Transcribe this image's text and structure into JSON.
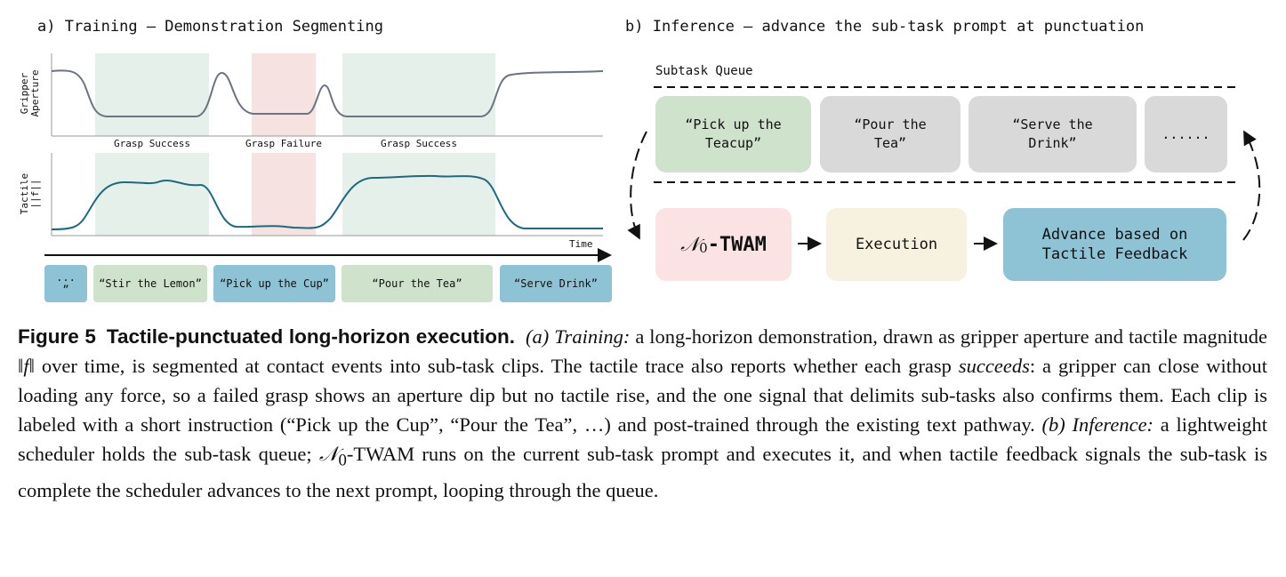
{
  "panel_a": {
    "title": "a) Training — Demonstration Segmenting",
    "aperture_label": [
      "Gripper",
      "Aperture"
    ],
    "tactile_label": [
      "Tactile",
      "||f||"
    ],
    "regions": [
      "Grasp Success",
      "Grasp Failure",
      "Grasp Success"
    ],
    "time_label": "Time",
    "segments": [
      [
        "...",
        "”"
      ],
      [
        "“Stir the Lemon”"
      ],
      [
        "“Pick up the Cup”"
      ],
      [
        "“Pour the Tea”"
      ],
      [
        "“Serve Drink”"
      ]
    ]
  },
  "panel_b": {
    "title": "b) Inference — advance the sub-task prompt at punctuation",
    "queue_label": "Subtask Queue",
    "queue": [
      [
        "“Pick up the",
        "Teacup”"
      ],
      [
        "“Pour the",
        "Tea”"
      ],
      [
        "“Serve the",
        "Drink”"
      ],
      [
        "......"
      ]
    ],
    "model": {
      "symbol": "𝒩",
      "subscript": "0",
      "name": "-TWAM"
    },
    "execution": "Execution",
    "advance": [
      "Advance based on",
      "Tactile Feedback"
    ]
  },
  "caption": {
    "label": "Figure 5",
    "title": "Tactile-punctuated long-horizon execution.",
    "runs": [
      "(a) Training:",
      " a long-horizon demonstration, drawn as gripper aperture and tactile magnitude ‖",
      "f",
      "‖ over time, is segmented at contact events into sub-task clips. The tactile trace also reports whether each grasp ",
      "succeeds",
      ": a gripper can close without loading any force, so a failed grasp shows an aperture dip but no tactile rise, and the one signal that delimits sub-tasks also confirms them. Each clip is labeled with a short instruction (“Pick up the Cup”, “Pour the Tea”, …) and post-trained through the existing text pathway. ",
      "(b) Inference:",
      " a lightweight scheduler holds the sub-task queue; ",
      "𝒩",
      "0",
      "-TWAM runs on the current sub-task prompt and executes it, and when tactile feedback signals the sub-task is complete the scheduler advances to the next prompt, looping through the queue."
    ]
  }
}
